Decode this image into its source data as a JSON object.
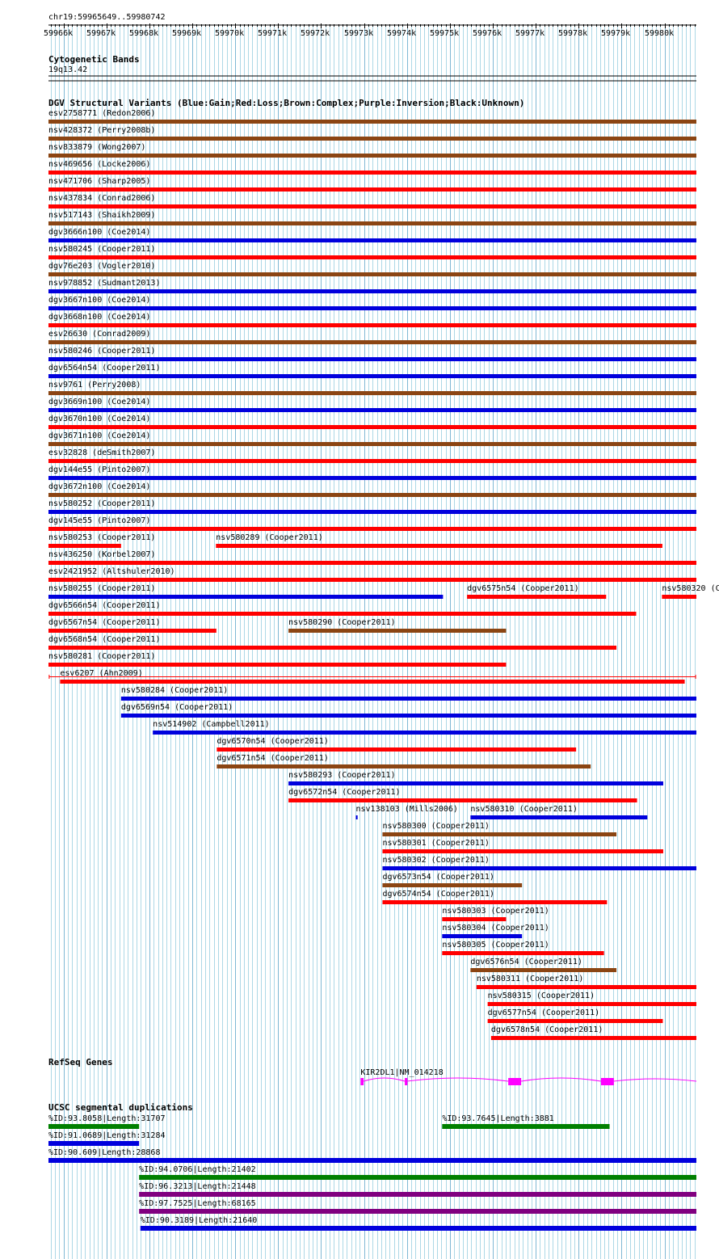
{
  "ruler": {
    "location": "chr19:59965649..59980742",
    "ticks": [
      "59966k",
      "59967k",
      "59968k",
      "59969k",
      "59970k",
      "59971k",
      "59972k",
      "59973k",
      "59974k",
      "59975k",
      "59976k",
      "59977k",
      "59978k",
      "59979k",
      "59980k"
    ]
  },
  "colors": {
    "gain": "#0000dd",
    "loss": "#ff0000",
    "complex": "#8b4513",
    "inversion": "#800080",
    "unknown": "#000000",
    "segdup_green": "#008000",
    "gene": "#ff00ff",
    "grid": "#add8e6"
  },
  "cytobands": {
    "title": "Cytogenetic Bands",
    "band": "19q13.42"
  },
  "dgv": {
    "title": "DGV Structural Variants (Blue:Gain;Red:Loss;Brown:Complex;Purple:Inversion;Black:Unknown)",
    "rows": [
      [
        {
          "label": "esv2758771 (Redon2006)",
          "type": "complex",
          "start": 59965649,
          "end": 59980742
        }
      ],
      [
        {
          "label": "nsv428372 (Perry2008b)",
          "type": "complex",
          "start": 59965649,
          "end": 59980742
        }
      ],
      [
        {
          "label": "nsv833879 (Wong2007)",
          "type": "complex",
          "start": 59965649,
          "end": 59980742
        }
      ],
      [
        {
          "label": "nsv469656 (Locke2006)",
          "type": "loss",
          "start": 59965649,
          "end": 59980742
        }
      ],
      [
        {
          "label": "nsv471706 (Sharp2005)",
          "type": "loss",
          "start": 59965649,
          "end": 59980742
        }
      ],
      [
        {
          "label": "nsv437834 (Conrad2006)",
          "type": "loss",
          "start": 59965649,
          "end": 59980742
        }
      ],
      [
        {
          "label": "nsv517143 (Shaikh2009)",
          "type": "complex",
          "start": 59965649,
          "end": 59980742
        }
      ],
      [
        {
          "label": "dgv3666n100 (Coe2014)",
          "type": "gain",
          "start": 59965649,
          "end": 59980742
        }
      ],
      [
        {
          "label": "nsv580245 (Cooper2011)",
          "type": "loss",
          "start": 59965649,
          "end": 59980742
        }
      ],
      [
        {
          "label": "dgv76e203 (Vogler2010)",
          "type": "complex",
          "start": 59965649,
          "end": 59980742
        }
      ],
      [
        {
          "label": "nsv978852 (Sudmant2013)",
          "type": "gain",
          "start": 59965649,
          "end": 59980742
        }
      ],
      [
        {
          "label": "dgv3667n100 (Coe2014)",
          "type": "gain",
          "start": 59965649,
          "end": 59980742
        }
      ],
      [
        {
          "label": "dgv3668n100 (Coe2014)",
          "type": "loss",
          "start": 59965649,
          "end": 59980742
        }
      ],
      [
        {
          "label": "esv26630 (Conrad2009)",
          "type": "complex",
          "start": 59965649,
          "end": 59980742
        }
      ],
      [
        {
          "label": "nsv580246 (Cooper2011)",
          "type": "gain",
          "start": 59965649,
          "end": 59980742
        }
      ],
      [
        {
          "label": "dgv6564n54 (Cooper2011)",
          "type": "gain",
          "start": 59965649,
          "end": 59980742
        }
      ],
      [
        {
          "label": "nsv9761 (Perry2008)",
          "type": "complex",
          "start": 59965649,
          "end": 59980742
        }
      ],
      [
        {
          "label": "dgv3669n100 (Coe2014)",
          "type": "gain",
          "start": 59965649,
          "end": 59980742
        }
      ],
      [
        {
          "label": "dgv3670n100 (Coe2014)",
          "type": "loss",
          "start": 59965649,
          "end": 59980742
        }
      ],
      [
        {
          "label": "dgv3671n100 (Coe2014)",
          "type": "complex",
          "start": 59965649,
          "end": 59980742
        }
      ],
      [
        {
          "label": "esv32828 (deSmith2007)",
          "type": "loss",
          "start": 59965649,
          "end": 59980742
        }
      ],
      [
        {
          "label": "dgv144e55 (Pinto2007)",
          "type": "gain",
          "start": 59965649,
          "end": 59980742
        }
      ],
      [
        {
          "label": "dgv3672n100 (Coe2014)",
          "type": "complex",
          "start": 59965649,
          "end": 59980742
        }
      ],
      [
        {
          "label": "nsv580252 (Cooper2011)",
          "type": "gain",
          "start": 59965649,
          "end": 59980742
        }
      ],
      [
        {
          "label": "dgv145e55 (Pinto2007)",
          "type": "loss",
          "start": 59965649,
          "end": 59980742
        }
      ],
      [
        {
          "label": "nsv580253 (Cooper2011)",
          "type": "loss",
          "start": 59965649,
          "end": 59967340
        },
        {
          "label": "nsv580289 (Cooper2011)",
          "type": "loss",
          "start": 59969550,
          "end": 59979950
        }
      ],
      [
        {
          "label": "nsv436250 (Korbel2007)",
          "type": "loss",
          "start": 59965649,
          "end": 59980742
        }
      ],
      [
        {
          "label": "esv2421952 (Altshuler2010)",
          "type": "loss",
          "start": 59965649,
          "end": 59980742
        }
      ],
      [
        {
          "label": "nsv580255 (Cooper2011)",
          "type": "gain",
          "start": 59965649,
          "end": 59974840
        },
        {
          "label": "dgv6575n54 (Cooper2011)",
          "type": "loss",
          "start": 59975400,
          "end": 59978640
        },
        {
          "label": "nsv580320 (Cooper2011)",
          "type": "loss",
          "start": 59979940,
          "end": 59980742
        }
      ],
      [
        {
          "label": "dgv6566n54 (Cooper2011)",
          "type": "loss",
          "start": 59965649,
          "end": 59979340
        }
      ],
      [
        {
          "label": "dgv6567n54 (Cooper2011)",
          "type": "loss",
          "start": 59965649,
          "end": 59969560
        },
        {
          "label": "nsv580290 (Cooper2011)",
          "type": "complex",
          "start": 59971240,
          "end": 59976310
        }
      ],
      [
        {
          "label": "dgv6568n54 (Cooper2011)",
          "type": "loss",
          "start": 59965649,
          "end": 59978880
        }
      ],
      [
        {
          "label": "nsv580281 (Cooper2011)",
          "type": "loss",
          "start": 59965649,
          "end": 59976310
        }
      ],
      [
        {
          "label": "esv6207 (Ahn2009)",
          "type": "loss",
          "start": 59965920,
          "end": 59980470,
          "whisker": true
        }
      ],
      [
        {
          "label": "nsv580284 (Cooper2011)",
          "type": "gain",
          "start": 59967340,
          "end": 59980742
        }
      ],
      [
        {
          "label": "dgv6569n54 (Cooper2011)",
          "type": "gain",
          "start": 59967340,
          "end": 59980742
        }
      ],
      [
        {
          "label": "nsv514902 (Campbell2011)",
          "type": "gain",
          "start": 59968080,
          "end": 59980742
        }
      ],
      [
        {
          "label": "dgv6570n54 (Cooper2011)",
          "type": "loss",
          "start": 59969570,
          "end": 59977940
        }
      ],
      [
        {
          "label": "dgv6571n54 (Cooper2011)",
          "type": "complex",
          "start": 59969570,
          "end": 59978280
        }
      ],
      [
        {
          "label": "nsv580293 (Cooper2011)",
          "type": "gain",
          "start": 59971240,
          "end": 59979970
        }
      ],
      [
        {
          "label": "dgv6572n54 (Cooper2011)",
          "type": "loss",
          "start": 59971240,
          "end": 59979360
        }
      ],
      [
        {
          "label": "nsv138103 (Mills2006)",
          "type": "gain",
          "start": 59972810,
          "end": 59972850
        },
        {
          "label": "nsv580310 (Cooper2011)",
          "type": "gain",
          "start": 59975480,
          "end": 59979600
        }
      ],
      [
        {
          "label": "nsv580300 (Cooper2011)",
          "type": "complex",
          "start": 59973430,
          "end": 59978880
        }
      ],
      [
        {
          "label": "nsv580301 (Cooper2011)",
          "type": "loss",
          "start": 59973430,
          "end": 59979970
        }
      ],
      [
        {
          "label": "nsv580302 (Cooper2011)",
          "type": "gain",
          "start": 59973430,
          "end": 59980742
        }
      ],
      [
        {
          "label": "dgv6573n54 (Cooper2011)",
          "type": "complex",
          "start": 59973430,
          "end": 59976680
        }
      ],
      [
        {
          "label": "dgv6574n54 (Cooper2011)",
          "type": "loss",
          "start": 59973430,
          "end": 59978660
        }
      ],
      [
        {
          "label": "nsv580303 (Cooper2011)",
          "type": "loss",
          "start": 59974820,
          "end": 59976310
        }
      ],
      [
        {
          "label": "nsv580304 (Cooper2011)",
          "type": "gain",
          "start": 59974820,
          "end": 59976680
        }
      ],
      [
        {
          "label": "nsv580305 (Cooper2011)",
          "type": "loss",
          "start": 59974820,
          "end": 59978590
        }
      ],
      [
        {
          "label": "dgv6576n54 (Cooper2011)",
          "type": "complex",
          "start": 59975480,
          "end": 59978880
        }
      ],
      [
        {
          "label": "nsv580311 (Cooper2011)",
          "type": "loss",
          "start": 59975620,
          "end": 59980742
        }
      ],
      [
        {
          "label": "nsv580315 (Cooper2011)",
          "type": "loss",
          "start": 59975880,
          "end": 59980742
        }
      ],
      [
        {
          "label": "dgv6577n54 (Cooper2011)",
          "type": "loss",
          "start": 59975880,
          "end": 59979960
        }
      ],
      [
        {
          "label": "dgv6578n54 (Cooper2011)",
          "type": "loss",
          "start": 59975960,
          "end": 59980742
        }
      ]
    ]
  },
  "refseq": {
    "title": "RefSeq Genes",
    "gene": {
      "label": "KIR2DL1|NM_014218",
      "start": 59972920,
      "end": 59980742,
      "exons": [
        [
          59972920,
          59972990
        ],
        [
          59973950,
          59974010
        ],
        [
          59976360,
          59976660
        ],
        [
          59978520,
          59978820
        ]
      ]
    }
  },
  "segdups": {
    "title": "UCSC segmental duplications",
    "rows": [
      [
        {
          "label": "%ID:93.8058|Length:31707",
          "color": "green",
          "start": 59965649,
          "end": 59967760
        },
        {
          "label": "%ID:93.7645|Length:3881",
          "color": "green",
          "start": 59974820,
          "end": 59978720
        }
      ],
      [
        {
          "label": "%ID:91.0689|Length:31284",
          "color": "blue",
          "start": 59965649,
          "end": 59967760
        }
      ],
      [
        {
          "label": "%ID:90.609|Length:28868",
          "color": "blue",
          "start": 59965649,
          "end": 59980742
        }
      ],
      [
        {
          "label": "%ID:94.0706|Length:21402",
          "color": "green",
          "start": 59967760,
          "end": 59980742
        }
      ],
      [
        {
          "label": "%ID:96.3213|Length:21448",
          "color": "purple",
          "start": 59967760,
          "end": 59980742
        }
      ],
      [
        {
          "label": "%ID:97.7525|Length:68165",
          "color": "purple",
          "start": 59967760,
          "end": 59980742
        }
      ],
      [
        {
          "label": "%ID:90.3189|Length:21640",
          "color": "blue",
          "start": 59967790,
          "end": 59980742
        }
      ]
    ]
  }
}
